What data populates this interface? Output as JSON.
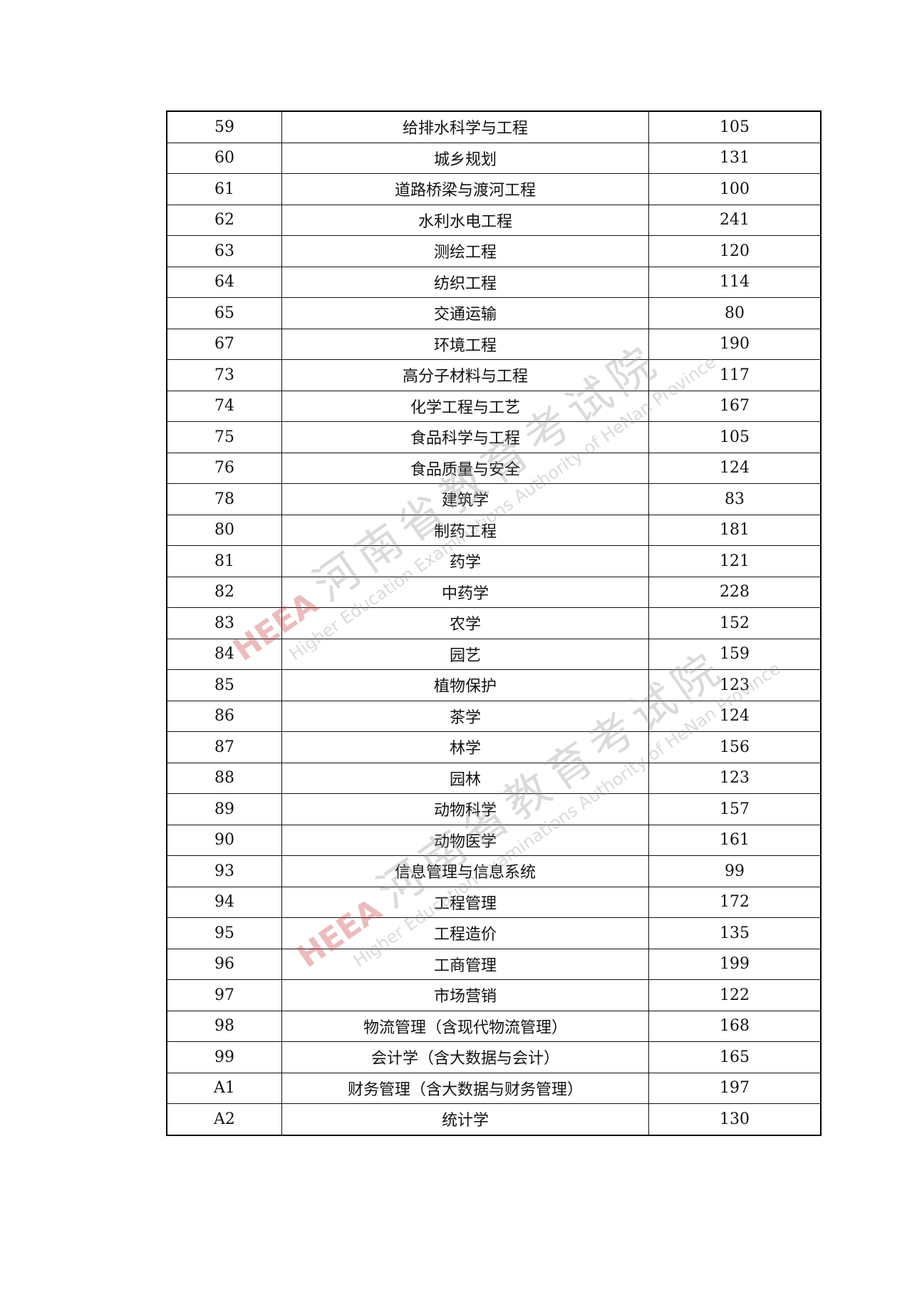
{
  "table": {
    "rows": [
      [
        "59",
        "给排水科学与工程",
        "105"
      ],
      [
        "60",
        "城乡规划",
        "131"
      ],
      [
        "61",
        "道路桥梁与渡河工程",
        "100"
      ],
      [
        "62",
        "水利水电工程",
        "241"
      ],
      [
        "63",
        "测绘工程",
        "120"
      ],
      [
        "64",
        "纺织工程",
        "114"
      ],
      [
        "65",
        "交通运输",
        "80"
      ],
      [
        "67",
        "环境工程",
        "190"
      ],
      [
        "73",
        "高分子材料与工程",
        "117"
      ],
      [
        "74",
        "化学工程与工艺",
        "167"
      ],
      [
        "75",
        "食品科学与工程",
        "105"
      ],
      [
        "76",
        "食品质量与安全",
        "124"
      ],
      [
        "78",
        "建筑学",
        "83"
      ],
      [
        "80",
        "制药工程",
        "181"
      ],
      [
        "81",
        "药学",
        "121"
      ],
      [
        "82",
        "中药学",
        "228"
      ],
      [
        "83",
        "农学",
        "152"
      ],
      [
        "84",
        "园艺",
        "159"
      ],
      [
        "85",
        "植物保护",
        "123"
      ],
      [
        "86",
        "茶学",
        "124"
      ],
      [
        "87",
        "林学",
        "156"
      ],
      [
        "88",
        "园林",
        "123"
      ],
      [
        "89",
        "动物科学",
        "157"
      ],
      [
        "90",
        "动物医学",
        "161"
      ],
      [
        "93",
        "信息管理与信息系统",
        "99"
      ],
      [
        "94",
        "工程管理",
        "172"
      ],
      [
        "95",
        "工程造价",
        "135"
      ],
      [
        "96",
        "工商管理",
        "199"
      ],
      [
        "97",
        "市场营销",
        "122"
      ],
      [
        "98",
        "物流管理（含现代物流管理）",
        "168"
      ],
      [
        "99",
        "会计学（含大数据与会计）",
        "165"
      ],
      [
        "A1",
        "财务管理（含大数据与财务管理）",
        "197"
      ],
      [
        "A2",
        "统计学",
        "130"
      ]
    ]
  },
  "watermark": {
    "logo": "HEEA",
    "cn": "河南省教育考试院",
    "en": "Higher Education Examinations Authority of HeNan Province"
  }
}
